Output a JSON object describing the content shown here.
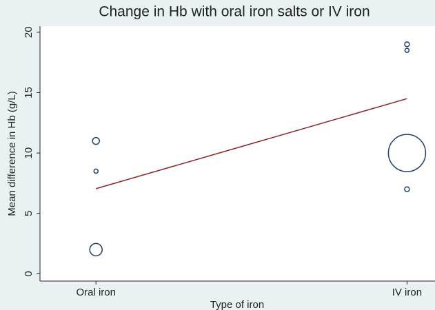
{
  "chart_data": {
    "type": "scatter",
    "title": "Change in Hb with oral iron salts or IV iron",
    "x_label": "Type of iron",
    "y_label": "Mean difference in Hb (g/L)",
    "x": [
      0,
      0,
      0,
      1,
      1,
      1,
      1
    ],
    "values": [
      11,
      8.5,
      2,
      19,
      18.5,
      10,
      7
    ],
    "sizes": [
      25,
      9,
      81,
      12,
      9,
      729,
      12
    ],
    "color": "#1f3f6e",
    "fit_line": {
      "x": [
        0,
        1
      ],
      "values": [
        7.05,
        14.5
      ],
      "color": "#8b2323"
    },
    "xlim": [
      -0.18,
      1.09
    ],
    "xticks": [
      {
        "value": 0,
        "label": "Oral iron"
      },
      {
        "value": 1,
        "label": "IV iron"
      }
    ],
    "ylim": [
      -0.6,
      20.5
    ],
    "yticks": [
      0,
      5,
      10,
      15,
      20
    ]
  }
}
